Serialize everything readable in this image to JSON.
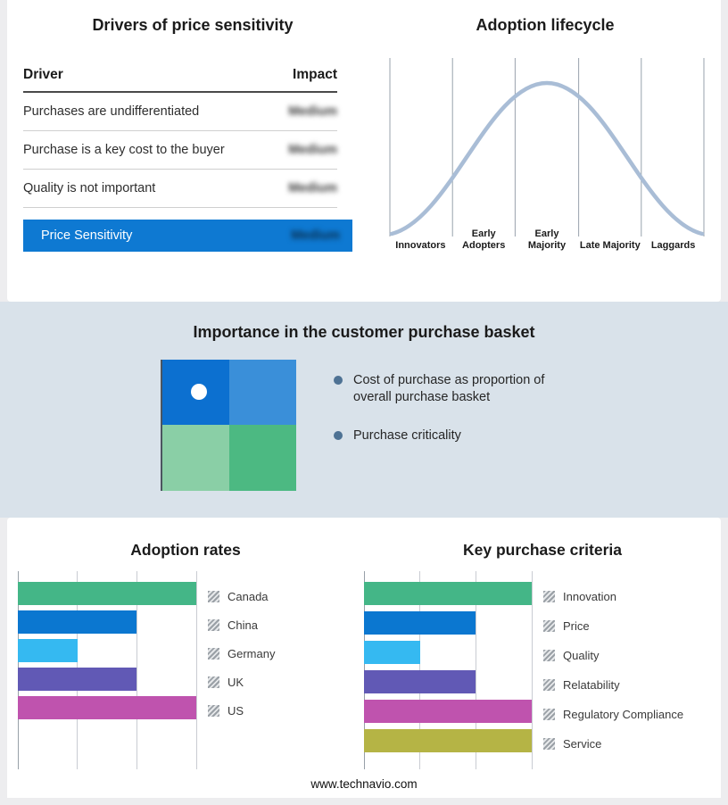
{
  "page": {
    "footer": "www.technavio.com",
    "background": "#ededef",
    "band_background": "#d9e2ea"
  },
  "drivers_table": {
    "title": "Drivers of price sensitivity",
    "columns": {
      "driver": "Driver",
      "impact": "Impact"
    },
    "rows": [
      {
        "driver": "Purchases are undifferentiated",
        "impact": "Medium"
      },
      {
        "driver": "Purchase is a key cost to the buyer",
        "impact": "Medium"
      },
      {
        "driver": "Quality is not important",
        "impact": "Medium"
      }
    ],
    "summary_row": {
      "label": "Price Sensitivity",
      "impact": "Medium",
      "color": "#0e79d2"
    }
  },
  "purchase_basket": {
    "title": "Importance in the customer purchase basket",
    "bullets": [
      "Cost of purchase as proportion of overall purchase basket",
      "Purchase criticality"
    ],
    "quadrant_colors": {
      "top_left": "#0c70d0",
      "top_right": "#3a8fd9",
      "bottom_left": "#8acfa6",
      "bottom_right": "#4cb982"
    }
  },
  "chart_data": [
    {
      "type": "bar",
      "title": "Adoption rates",
      "orientation": "horizontal",
      "categories": [
        "Canada",
        "China",
        "Germany",
        "UK",
        "US"
      ],
      "values": [
        3,
        2,
        1,
        2,
        3
      ],
      "colors": [
        "#44b687",
        "#0b77d0",
        "#35b9f1",
        "#6159b5",
        "#bf53ae"
      ],
      "xlim": [
        0,
        3
      ],
      "grid": true,
      "legend_position": "right",
      "legend_marker": "hatched-gray"
    },
    {
      "type": "bar",
      "title": "Key purchase criteria",
      "orientation": "horizontal",
      "categories": [
        "Innovation",
        "Price",
        "Quality",
        "Relatability",
        "Regulatory Compliance",
        "Service"
      ],
      "values": [
        3,
        2,
        1,
        2,
        3,
        3
      ],
      "colors": [
        "#44b687",
        "#0b77d0",
        "#35b9f1",
        "#6159b5",
        "#bf53ae",
        "#b5b445"
      ],
      "xlim": [
        0,
        3
      ],
      "grid": true,
      "legend_position": "right",
      "legend_marker": "hatched-gray"
    },
    {
      "type": "line",
      "title": "Adoption lifecycle",
      "x": [
        "Innovators",
        "Early Adopters",
        "Early Majority",
        "Late Majority",
        "Laggards"
      ],
      "y_relative": [
        0.05,
        0.6,
        1.0,
        0.6,
        0.05
      ],
      "description": "Bell curve over five adoption stages with vertical stage gridlines",
      "curve_color": "#a9bdd6",
      "grid": true
    }
  ]
}
